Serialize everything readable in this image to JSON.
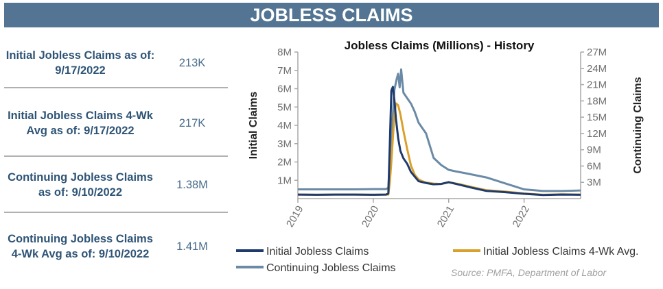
{
  "banner": {
    "title": "JOBLESS CLAIMS"
  },
  "stats": [
    {
      "label": "Initial Jobless Claims as of: 9/17/2022",
      "value": "213K"
    },
    {
      "label": "Initial Jobless Claims 4-Wk Avg as of: 9/17/2022",
      "value": "217K"
    },
    {
      "label": "Continuing Jobless Claims as of: 9/10/2022",
      "value": "1.38M"
    },
    {
      "label": "Continuing Jobless Claims 4-Wk Avg as of: 9/10/2022",
      "value": "1.41M"
    }
  ],
  "source": "Source: PMFA, Department of Labor",
  "chart_data": {
    "type": "line",
    "title": "Jobless Claims (Millions) - History",
    "ylabel": "Initial Claims",
    "y2label": "Continuing Claims",
    "ylim": [
      0,
      8
    ],
    "y2lim": [
      0,
      27
    ],
    "xlim": [
      2019.0,
      2022.75
    ],
    "y_ticks": [
      "1M",
      "2M",
      "3M",
      "4M",
      "5M",
      "6M",
      "7M",
      "8M"
    ],
    "y2_ticks": [
      "3M",
      "6M",
      "9M",
      "12M",
      "15M",
      "18M",
      "21M",
      "24M",
      "27M"
    ],
    "x_ticks": [
      "2019",
      "2020",
      "2021",
      "2022"
    ],
    "grid": false,
    "legend_position": "bottom",
    "colors": {
      "initial": "#1f3b6e",
      "avg": "#d9a02c",
      "continuing": "#6a8aa6"
    },
    "series": [
      {
        "name": "Initial Jobless Claims",
        "axis": "left",
        "color": "#1f3b6e",
        "x": [
          2019.0,
          2019.25,
          2019.5,
          2019.75,
          2020.0,
          2020.17,
          2020.2,
          2020.22,
          2020.24,
          2020.26,
          2020.28,
          2020.3,
          2020.33,
          2020.36,
          2020.4,
          2020.45,
          2020.5,
          2020.55,
          2020.6,
          2020.65,
          2020.7,
          2020.8,
          2020.9,
          2021.0,
          2021.05,
          2021.15,
          2021.3,
          2021.5,
          2021.75,
          2022.0,
          2022.25,
          2022.5,
          2022.75
        ],
        "y": [
          0.22,
          0.21,
          0.22,
          0.22,
          0.21,
          0.22,
          0.28,
          3.0,
          5.9,
          6.1,
          5.4,
          4.4,
          3.3,
          2.6,
          2.2,
          1.9,
          1.45,
          1.2,
          0.95,
          0.9,
          0.85,
          0.78,
          0.8,
          0.9,
          0.85,
          0.75,
          0.6,
          0.42,
          0.35,
          0.26,
          0.2,
          0.22,
          0.21
        ]
      },
      {
        "name": "Initial Jobless Claims 4-Wk Avg.",
        "axis": "left",
        "color": "#d9a02c",
        "x": [
          2019.0,
          2019.25,
          2019.5,
          2019.75,
          2020.0,
          2020.17,
          2020.2,
          2020.22,
          2020.24,
          2020.26,
          2020.28,
          2020.3,
          2020.33,
          2020.36,
          2020.4,
          2020.45,
          2020.5,
          2020.55,
          2020.6,
          2020.65,
          2020.7,
          2020.8,
          2020.9,
          2021.0,
          2021.05,
          2021.15,
          2021.3,
          2021.5,
          2021.75,
          2022.0,
          2022.25,
          2022.5,
          2022.75
        ],
        "y": [
          0.22,
          0.21,
          0.22,
          0.22,
          0.21,
          0.22,
          0.22,
          0.9,
          2.0,
          3.3,
          4.5,
          5.2,
          5.1,
          4.6,
          3.7,
          2.7,
          1.8,
          1.3,
          1.05,
          0.95,
          0.88,
          0.82,
          0.8,
          0.88,
          0.86,
          0.78,
          0.64,
          0.46,
          0.38,
          0.28,
          0.21,
          0.23,
          0.22
        ]
      },
      {
        "name": "Continuing Jobless Claims",
        "axis": "right",
        "color": "#6a8aa6",
        "x": [
          2019.0,
          2019.25,
          2019.5,
          2019.75,
          2020.0,
          2020.17,
          2020.2,
          2020.24,
          2020.28,
          2020.31,
          2020.33,
          2020.35,
          2020.37,
          2020.4,
          2020.45,
          2020.5,
          2020.55,
          2020.6,
          2020.65,
          2020.7,
          2020.8,
          2020.9,
          2021.0,
          2021.1,
          2021.25,
          2021.5,
          2021.75,
          2022.0,
          2022.25,
          2022.5,
          2022.75
        ],
        "y": [
          1.7,
          1.7,
          1.7,
          1.7,
          1.75,
          1.75,
          2.0,
          11.0,
          20.0,
          22.0,
          23.0,
          20.5,
          23.8,
          19.5,
          18.5,
          17.5,
          16.0,
          14.0,
          13.0,
          12.0,
          7.5,
          6.2,
          5.3,
          5.0,
          4.6,
          3.9,
          2.8,
          1.7,
          1.4,
          1.4,
          1.5
        ]
      }
    ]
  }
}
